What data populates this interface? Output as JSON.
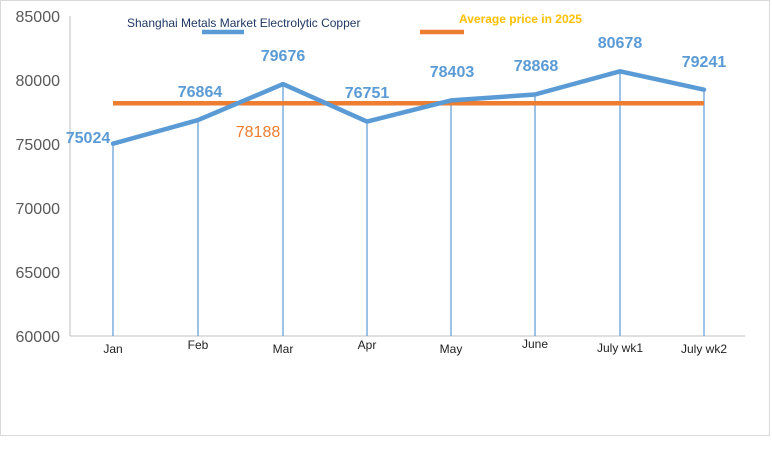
{
  "chart_data": {
    "type": "line",
    "categories": [
      "Jan",
      "Feb",
      "Mar",
      "Apr",
      "May",
      "June",
      "July wk1",
      "July wk2"
    ],
    "series": [
      {
        "name": "Shanghai Metals Market Electrolytic Copper",
        "values": [
          75024,
          76864,
          79676,
          76751,
          78403,
          78868,
          80678,
          79241
        ],
        "color": "#5b9bd5"
      },
      {
        "name": "Average price in 2025",
        "values": [
          78188,
          78188,
          78188,
          78188,
          78188,
          78188,
          78188,
          78188
        ],
        "label": "78188",
        "color": "#ed7d31"
      }
    ],
    "ylim": [
      60000,
      85000
    ],
    "yticks": [
      "60000",
      "65000",
      "70000",
      "75000",
      "80000",
      "85000"
    ],
    "legend_position": "top",
    "grid": false,
    "drop_lines": true
  }
}
